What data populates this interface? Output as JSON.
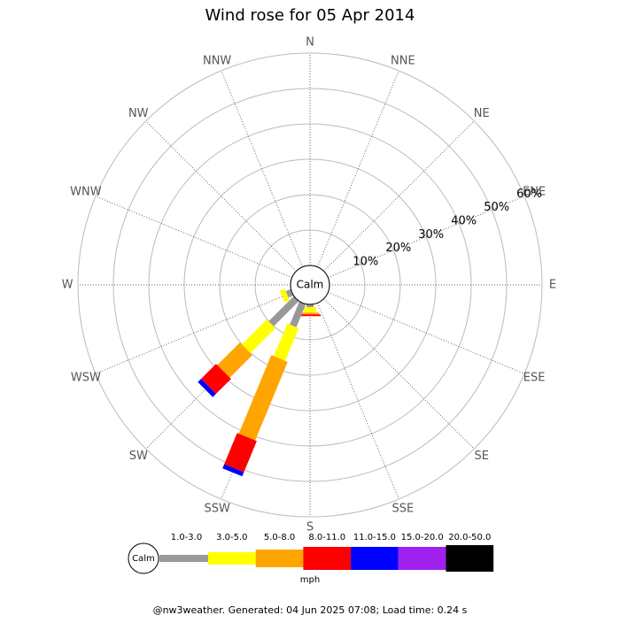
{
  "chart_data": {
    "type": "windrose",
    "title": "Wind rose for 05 Apr 2014",
    "categories": [
      "N",
      "NNE",
      "NE",
      "ENE",
      "E",
      "ESE",
      "SE",
      "SSE",
      "S",
      "SSW",
      "SW",
      "WSW",
      "W",
      "WNW",
      "NW",
      "NNW"
    ],
    "calm_label": "Calm",
    "rlim": [
      0,
      60
    ],
    "rticks": [
      {
        "value": 10,
        "label": "10%"
      },
      {
        "value": 20,
        "label": "20%"
      },
      {
        "value": 30,
        "label": "30%"
      },
      {
        "value": 40,
        "label": "40%"
      },
      {
        "value": 50,
        "label": "50%"
      },
      {
        "value": 60,
        "label": "60%"
      }
    ],
    "series": [
      {
        "name": "1.0-3.0",
        "color": "#999999",
        "values": [
          0,
          0,
          0,
          0,
          0,
          0,
          0,
          0,
          0.8,
          7,
          10,
          1.5,
          0,
          0,
          0,
          0
        ]
      },
      {
        "name": "3.0-5.0",
        "color": "#ffff00",
        "values": [
          0,
          0,
          0,
          0,
          0,
          0,
          0,
          0,
          1.5,
          10,
          10,
          1.5,
          0,
          0,
          0,
          0
        ]
      },
      {
        "name": "5.0-8.0",
        "color": "#ffa500",
        "values": [
          0,
          0,
          0,
          0,
          0,
          0,
          0,
          0,
          0.5,
          24,
          9,
          0,
          0,
          0,
          0,
          0
        ]
      },
      {
        "name": "8.0-11.0",
        "color": "#ff0000",
        "values": [
          0,
          0,
          0,
          0,
          0,
          0,
          0,
          0,
          0.5,
          9.5,
          6,
          0,
          0,
          0,
          0,
          0
        ]
      },
      {
        "name": "11.0-15.0",
        "color": "#0000ff",
        "values": [
          0,
          0,
          0,
          0,
          0,
          0,
          0,
          0,
          0,
          1.3,
          1.3,
          0,
          0,
          0,
          0,
          0
        ]
      },
      {
        "name": "15.0-20.0",
        "color": "#a020f0",
        "values": [
          0,
          0,
          0,
          0,
          0,
          0,
          0,
          0,
          0,
          0,
          0,
          0,
          0,
          0,
          0,
          0
        ]
      },
      {
        "name": "20.0-50.0",
        "color": "#000000",
        "values": [
          0,
          0,
          0,
          0,
          0,
          0,
          0,
          0,
          0,
          0,
          0,
          0,
          0,
          0,
          0,
          0
        ]
      }
    ],
    "legend_unit": "mph",
    "footer": "@nw3weather. Generated: 04 Jun 2025 07:08; Load time: 0.24 s"
  }
}
